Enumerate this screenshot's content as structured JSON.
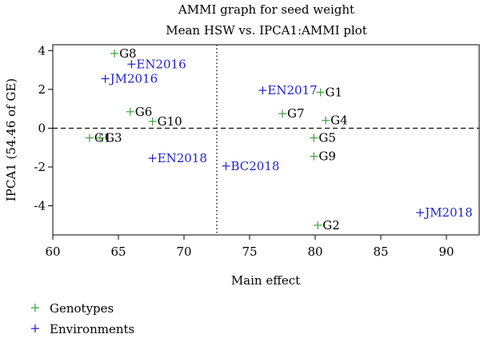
{
  "chart_data": {
    "type": "scatter",
    "title": "AMMI graph for seed weight",
    "subtitle": "Mean HSW vs. IPCA1:AMMI plot",
    "xlabel": "Main effect",
    "ylabel": "IPCA1 (54.46 of GE)",
    "xlim": [
      60,
      92.5
    ],
    "ylim": [
      -5.5,
      4.3
    ],
    "x_ticks": [
      "60",
      "65",
      "70",
      "75",
      "80",
      "85",
      "90"
    ],
    "y_ticks": [
      "-4",
      "-2",
      "0",
      "2",
      "4"
    ],
    "reference_lines": {
      "vertical_x": 72.5,
      "horizontal_y": 0
    },
    "series": [
      {
        "name": "Genotypes",
        "color": "#3aa23a",
        "points": [
          {
            "label": "G8",
            "x": 64.7,
            "y": 3.85
          },
          {
            "label": "G6",
            "x": 65.9,
            "y": 0.85
          },
          {
            "label": "G10",
            "x": 67.6,
            "y": 0.35
          },
          {
            "label": "G1",
            "x": 62.8,
            "y": -0.5
          },
          {
            "label": "G3",
            "x": 63.6,
            "y": -0.5
          },
          {
            "label": "G7",
            "x": 77.5,
            "y": 0.75
          },
          {
            "label": "G4",
            "x": 80.8,
            "y": 0.4
          },
          {
            "label": "G5",
            "x": 79.9,
            "y": -0.5
          },
          {
            "label": "G9",
            "x": 79.9,
            "y": -1.45
          },
          {
            "label": "G2",
            "x": 80.2,
            "y": -5.0
          },
          {
            "label": "G1",
            "x": 80.4,
            "y": 1.85
          }
        ]
      },
      {
        "name": "Environments",
        "color": "#1f1fcf",
        "points": [
          {
            "label": "EN2016",
            "x": 66.0,
            "y": 3.3
          },
          {
            "label": "JM2016",
            "x": 64.0,
            "y": 2.55
          },
          {
            "label": "EN2017",
            "x": 76.0,
            "y": 1.95
          },
          {
            "label": "EN2018",
            "x": 67.6,
            "y": -1.55
          },
          {
            "label": "BC2018",
            "x": 73.2,
            "y": -1.95
          },
          {
            "label": "JM2018",
            "x": 88.0,
            "y": -4.35
          }
        ]
      }
    ],
    "legend_placement": "bottom-left"
  }
}
